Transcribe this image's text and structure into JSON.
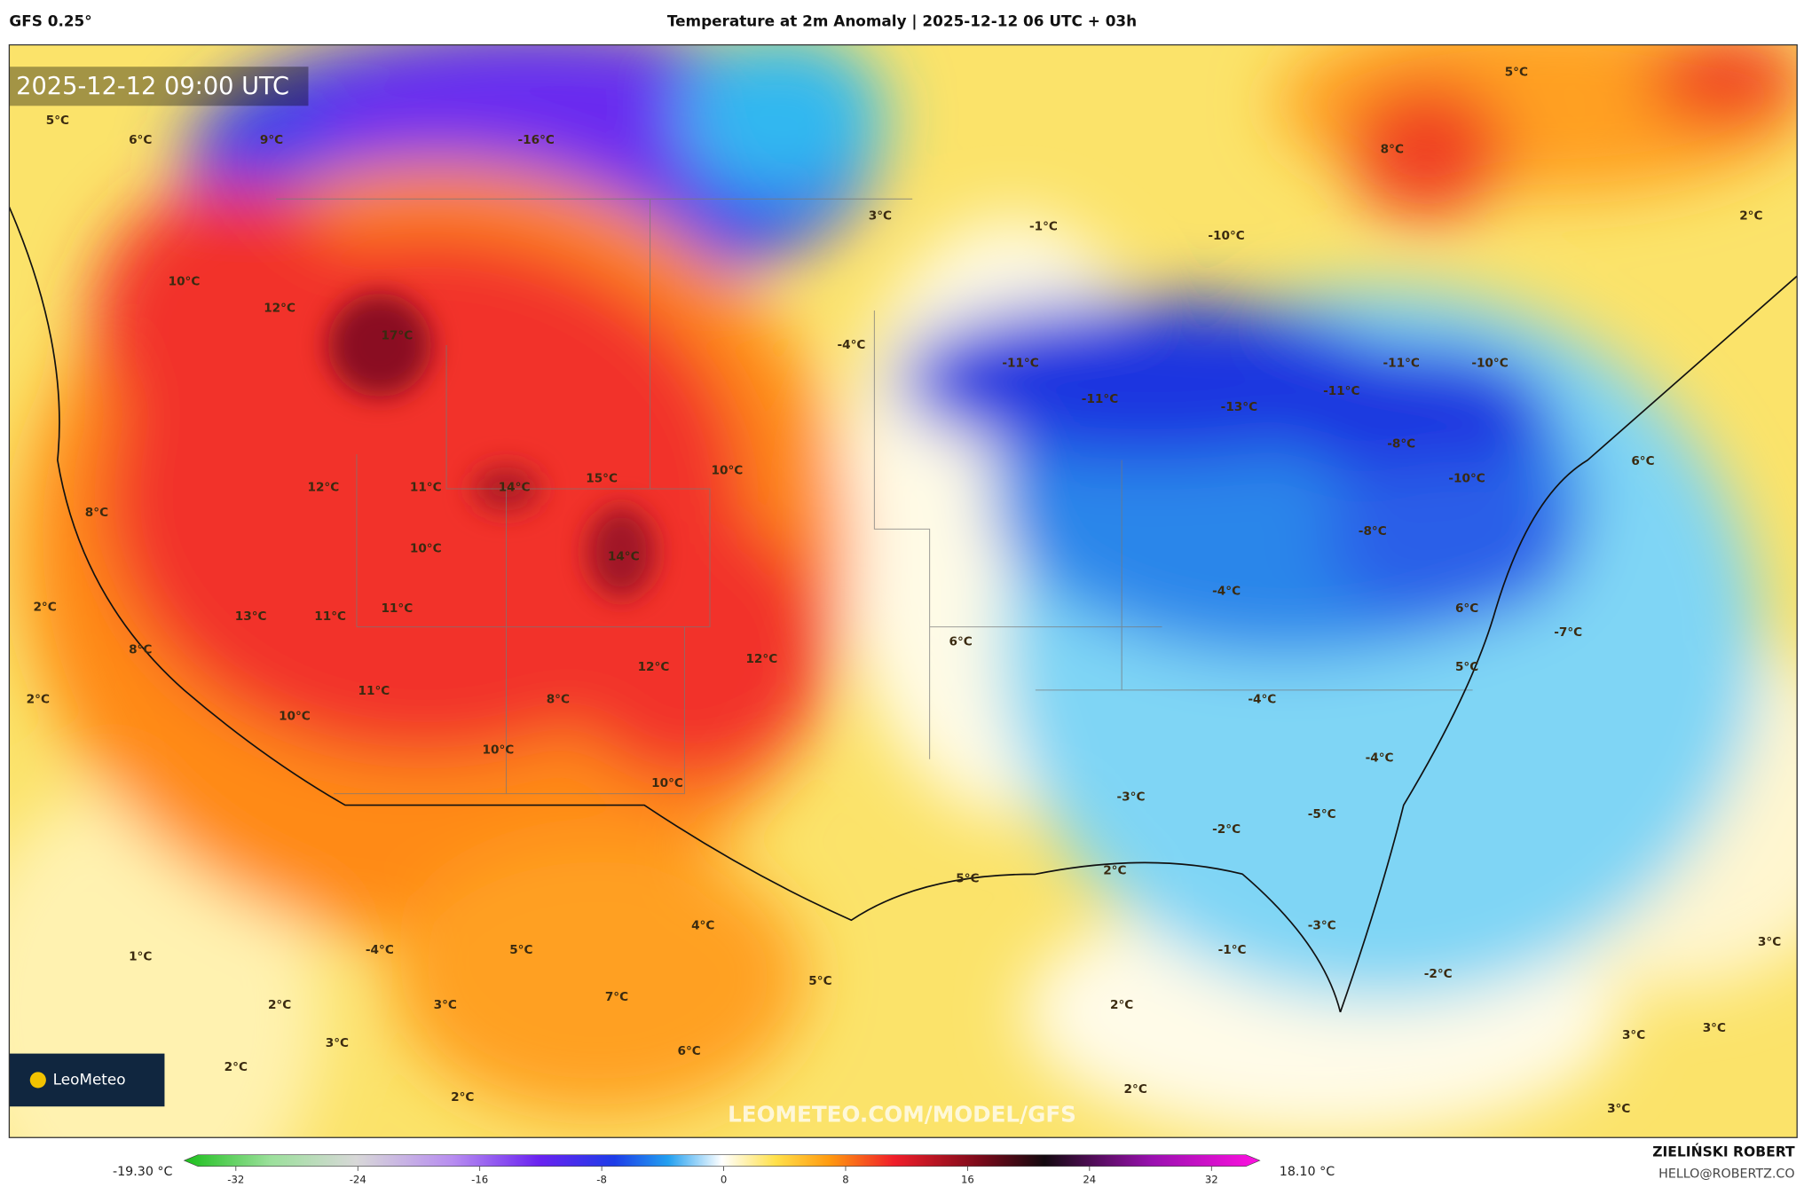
{
  "header": {
    "model": "GFS 0.25°",
    "title": "Temperature at 2m Anomaly | 2025-12-12 06 UTC + 03h"
  },
  "map": {
    "timestamp": "2025-12-12 09:00 UTC",
    "labels": [
      "5°C",
      "6°C",
      "9°C",
      "-16°C",
      "5°C",
      "8°C",
      "3°C",
      "2°C",
      "-1°C",
      "-10°C",
      "10°C",
      "12°C",
      "17°C",
      "-4°C",
      "-11°C",
      "-11°C",
      "-10°C",
      "-11°C",
      "-13°C",
      "-11°C",
      "-8°C",
      "8°C",
      "12°C",
      "11°C",
      "14°C",
      "15°C",
      "10°C",
      "-10°C",
      "6°C",
      "10°C",
      "14°C",
      "-8°C",
      "2°C",
      "13°C",
      "11°C",
      "11°C",
      "-4°C",
      "-7°C",
      "6°C",
      "8°C",
      "12°C",
      "12°C",
      "5°C",
      "6°C",
      "2°C",
      "11°C",
      "8°C",
      "-4°C",
      "10°C",
      "10°C",
      "-4°C",
      "10°C",
      "-3°C",
      "-5°C",
      "-2°C",
      "5°C",
      "2°C",
      "4°C",
      "-3°C",
      "1°C",
      "-4°C",
      "5°C",
      "-1°C",
      "5°C",
      "-2°C",
      "3°C",
      "7°C",
      "2°C",
      "3°C",
      "2°C",
      "3°C",
      "6°C",
      "3°C",
      "3°C",
      "2°C",
      "2°C",
      "2°C",
      "3°C"
    ],
    "watermark": "LEOMETEO.COM/MODEL/GFS",
    "logo": "LeoMeteo"
  },
  "colorbar": {
    "min_label": "-19.30 °C",
    "max_label": "18.10 °C",
    "ticks": [
      -32,
      -24,
      -16,
      -8,
      0,
      8,
      16,
      24,
      32
    ]
  },
  "credit": {
    "author": "ZIELIŃSKI ROBERT",
    "email": "HELLO@ROBERTZ.CO"
  }
}
